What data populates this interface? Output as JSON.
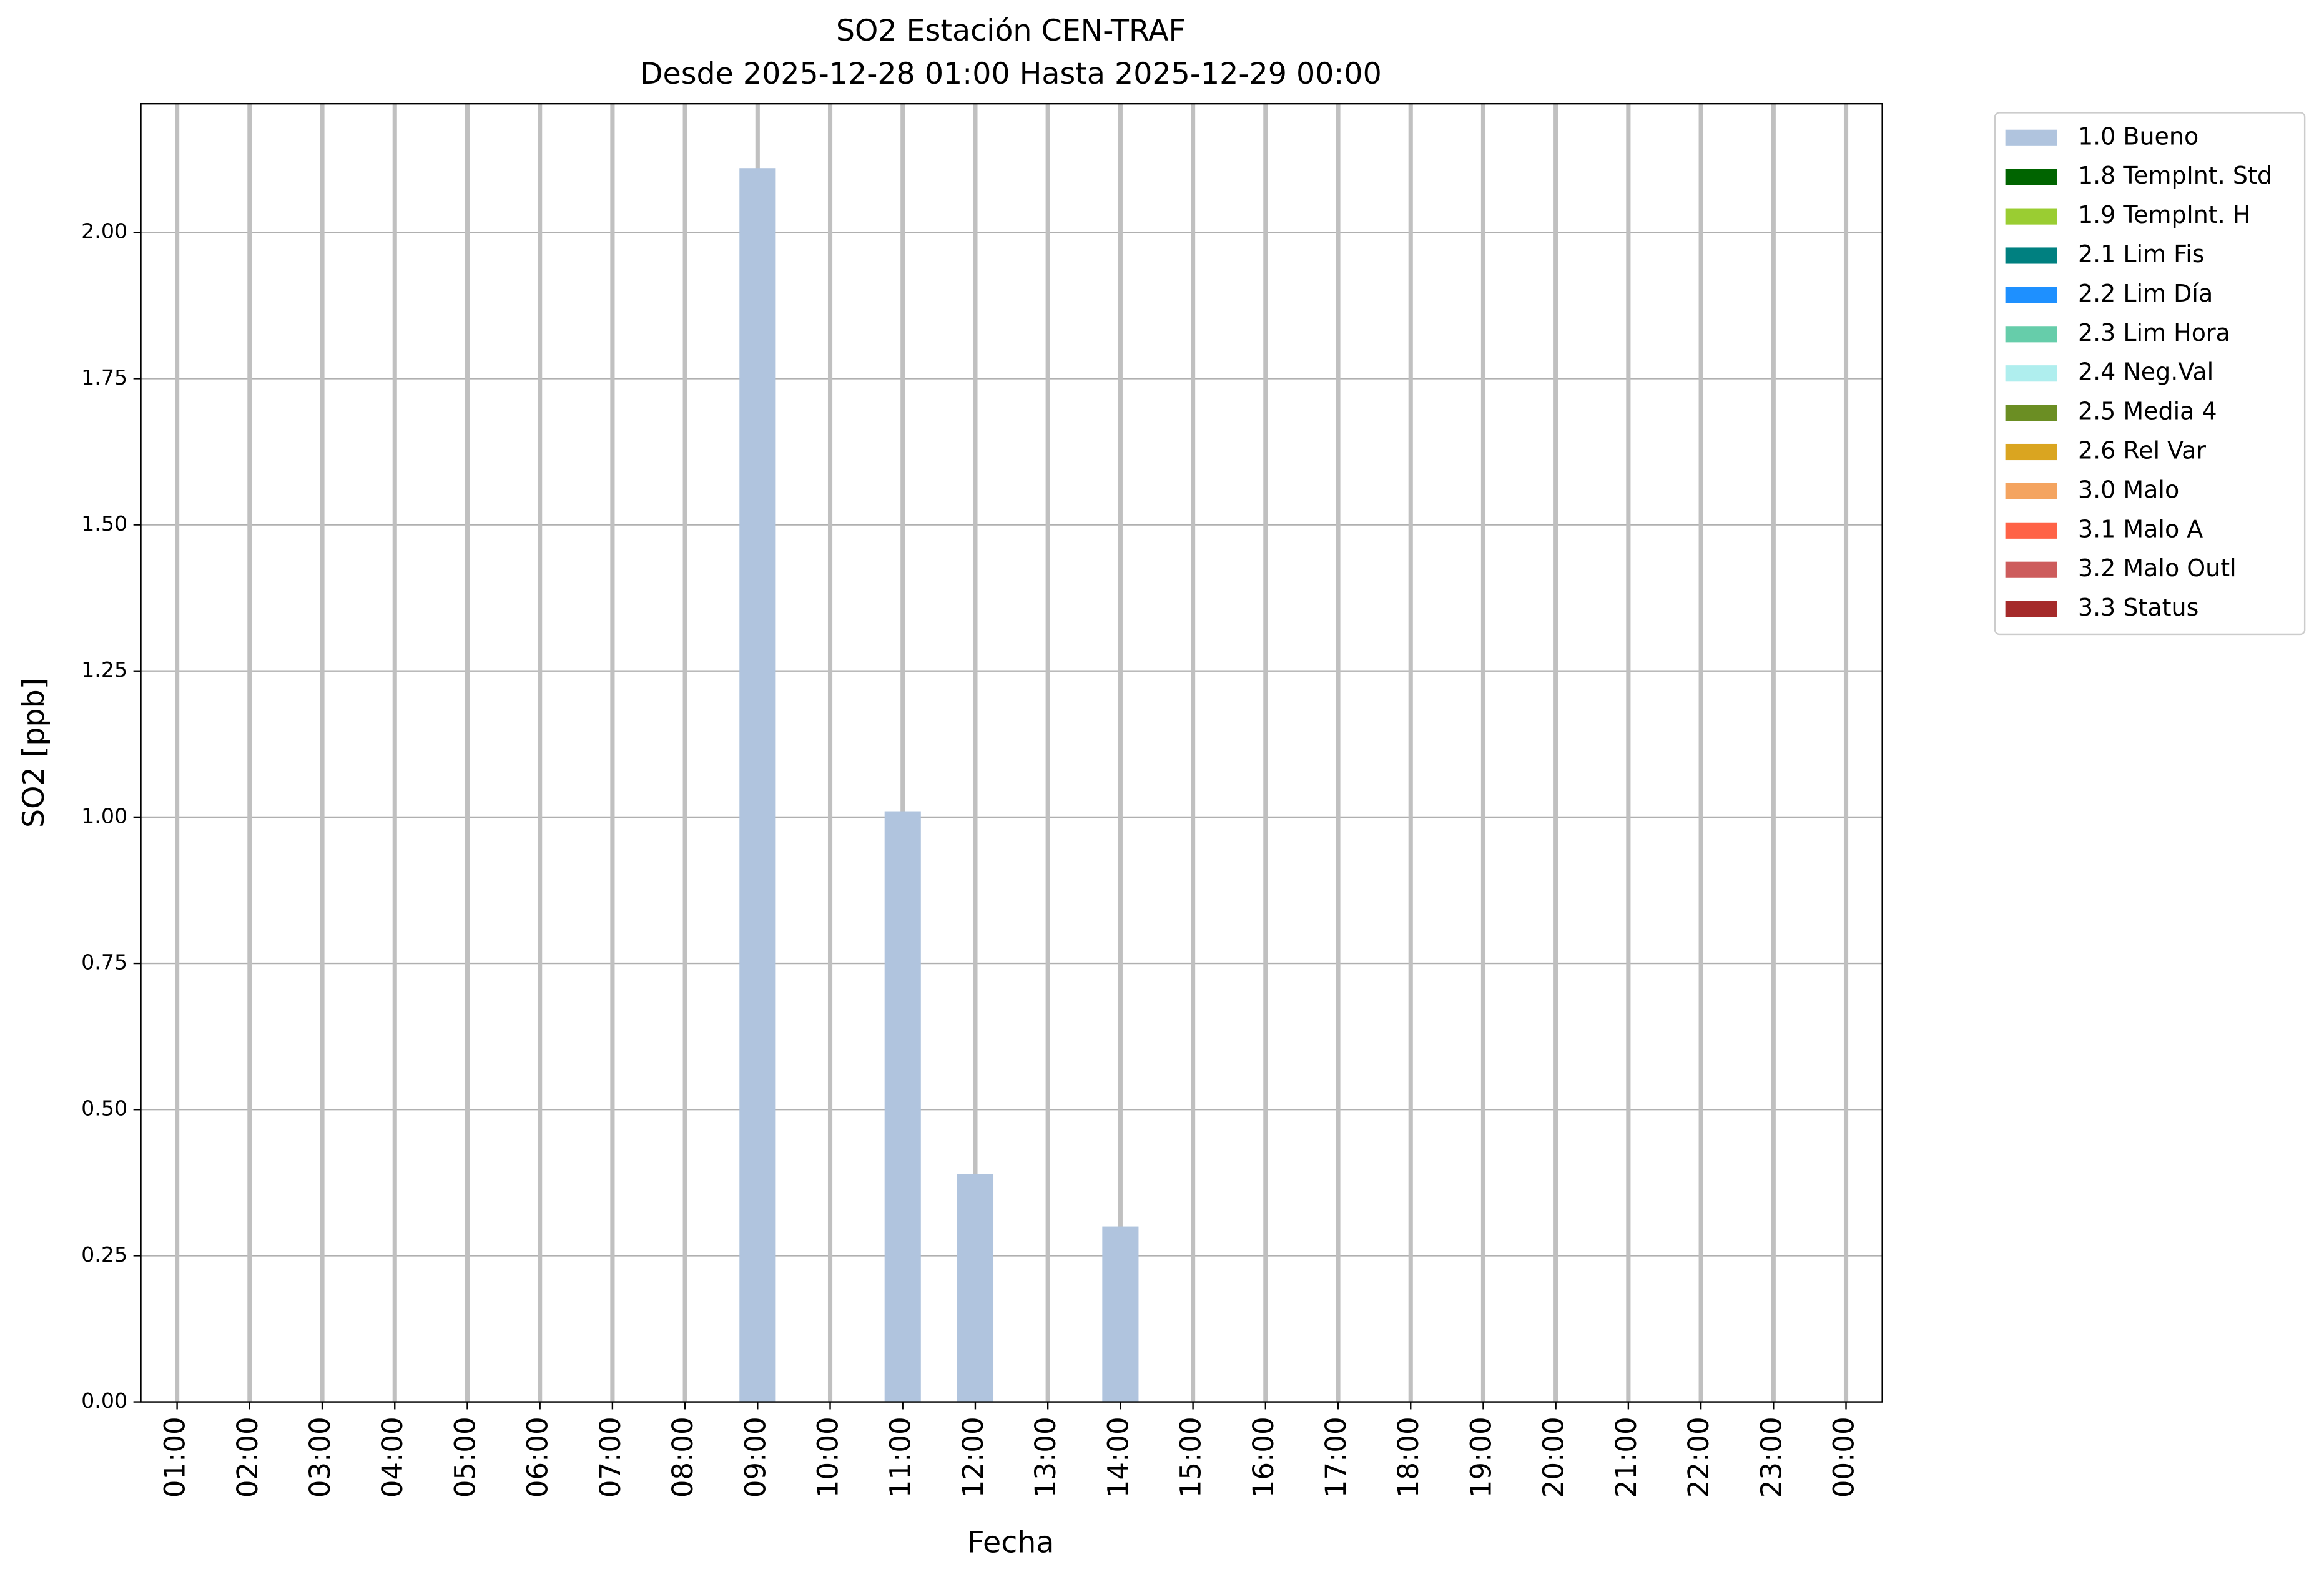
{
  "chart_data": {
    "type": "bar",
    "stacked": true,
    "title": "SO2 Estación CEN-TRAF",
    "subtitle": "Desde 2025-12-28 01:00 Hasta 2025-12-29 00:00",
    "x_label": "Fecha",
    "y_label": "SO2 [ppb]",
    "grid": true,
    "legend": "outside right",
    "categories": [
      "01:00",
      "02:00",
      "03:00",
      "04:00",
      "05:00",
      "06:00",
      "07:00",
      "08:00",
      "09:00",
      "10:00",
      "11:00",
      "12:00",
      "13:00",
      "14:00",
      "15:00",
      "16:00",
      "17:00",
      "18:00",
      "19:00",
      "20:00",
      "21:00",
      "22:00",
      "23:00",
      "00:00"
    ],
    "ylim": [
      0,
      2.22
    ],
    "yticks": [
      {
        "value": 0,
        "label": "0.00"
      },
      {
        "value": 0.25,
        "label": "0.25"
      },
      {
        "value": 0.5,
        "label": "0.50"
      },
      {
        "value": 0.75,
        "label": "0.75"
      },
      {
        "value": 1,
        "label": "1.00"
      },
      {
        "value": 1.25,
        "label": "1.25"
      },
      {
        "value": 1.5,
        "label": "1.50"
      },
      {
        "value": 1.75,
        "label": "1.75"
      },
      {
        "value": 2,
        "label": "2.00"
      }
    ],
    "series": [
      {
        "name": "1.0 Bueno",
        "color": "#b0c4de",
        "values": [
          null,
          null,
          null,
          null,
          null,
          null,
          null,
          null,
          2.11,
          null,
          1.01,
          0.39,
          null,
          0.3,
          null,
          null,
          null,
          null,
          null,
          null,
          null,
          null,
          null,
          null
        ]
      },
      {
        "name": "1.8 TempInt. Std",
        "color": "#006400",
        "values": [
          null,
          null,
          null,
          null,
          null,
          null,
          null,
          null,
          null,
          null,
          null,
          null,
          null,
          null,
          null,
          null,
          null,
          null,
          null,
          null,
          null,
          null,
          null,
          null
        ]
      },
      {
        "name": "1.9 TempInt. H",
        "color": "#9acd32",
        "values": [
          null,
          null,
          null,
          null,
          null,
          null,
          null,
          null,
          null,
          null,
          null,
          null,
          null,
          null,
          null,
          null,
          null,
          null,
          null,
          null,
          null,
          null,
          null,
          null
        ]
      },
      {
        "name": "2.1 Lim Fis",
        "color": "#008080",
        "values": [
          null,
          null,
          null,
          null,
          null,
          null,
          null,
          null,
          null,
          null,
          null,
          null,
          null,
          null,
          null,
          null,
          null,
          null,
          null,
          null,
          null,
          null,
          null,
          null
        ]
      },
      {
        "name": "2.2 Lim Día",
        "color": "#1e90ff",
        "values": [
          null,
          null,
          null,
          null,
          null,
          null,
          null,
          null,
          null,
          null,
          null,
          null,
          null,
          null,
          null,
          null,
          null,
          null,
          null,
          null,
          null,
          null,
          null,
          null
        ]
      },
      {
        "name": "2.3 Lim Hora",
        "color": "#66cdaa",
        "values": [
          null,
          null,
          null,
          null,
          null,
          null,
          null,
          null,
          null,
          null,
          null,
          null,
          null,
          null,
          null,
          null,
          null,
          null,
          null,
          null,
          null,
          null,
          null,
          null
        ]
      },
      {
        "name": "2.4 Neg.Val",
        "color": "#afeeee",
        "values": [
          null,
          null,
          null,
          null,
          null,
          null,
          null,
          null,
          null,
          null,
          null,
          null,
          null,
          null,
          null,
          null,
          null,
          null,
          null,
          null,
          null,
          null,
          null,
          null
        ]
      },
      {
        "name": "2.5 Media 4",
        "color": "#6b8e23",
        "values": [
          null,
          null,
          null,
          null,
          null,
          null,
          null,
          null,
          null,
          null,
          null,
          null,
          null,
          null,
          null,
          null,
          null,
          null,
          null,
          null,
          null,
          null,
          null,
          null
        ]
      },
      {
        "name": "2.6 Rel Var",
        "color": "#daa520",
        "values": [
          null,
          null,
          null,
          null,
          null,
          null,
          null,
          null,
          null,
          null,
          null,
          null,
          null,
          null,
          null,
          null,
          null,
          null,
          null,
          null,
          null,
          null,
          null,
          null
        ]
      },
      {
        "name": "3.0 Malo",
        "color": "#f4a460",
        "values": [
          null,
          null,
          null,
          null,
          null,
          null,
          null,
          null,
          null,
          null,
          null,
          null,
          null,
          null,
          null,
          null,
          null,
          null,
          null,
          null,
          null,
          null,
          null,
          null
        ]
      },
      {
        "name": "3.1 Malo A",
        "color": "#ff6347",
        "values": [
          null,
          null,
          null,
          null,
          null,
          null,
          null,
          null,
          null,
          null,
          null,
          null,
          null,
          null,
          null,
          null,
          null,
          null,
          null,
          null,
          null,
          null,
          null,
          null
        ]
      },
      {
        "name": "3.2 Malo Outl",
        "color": "#cd5c5c",
        "values": [
          null,
          null,
          null,
          null,
          null,
          null,
          null,
          null,
          null,
          null,
          null,
          null,
          null,
          null,
          null,
          null,
          null,
          null,
          null,
          null,
          null,
          null,
          null,
          null
        ]
      },
      {
        "name": "3.3 Status",
        "color": "#a52a2a",
        "values": [
          null,
          null,
          null,
          null,
          null,
          null,
          null,
          null,
          null,
          null,
          null,
          null,
          null,
          null,
          null,
          null,
          null,
          null,
          null,
          null,
          null,
          null,
          null,
          null
        ]
      }
    ]
  }
}
